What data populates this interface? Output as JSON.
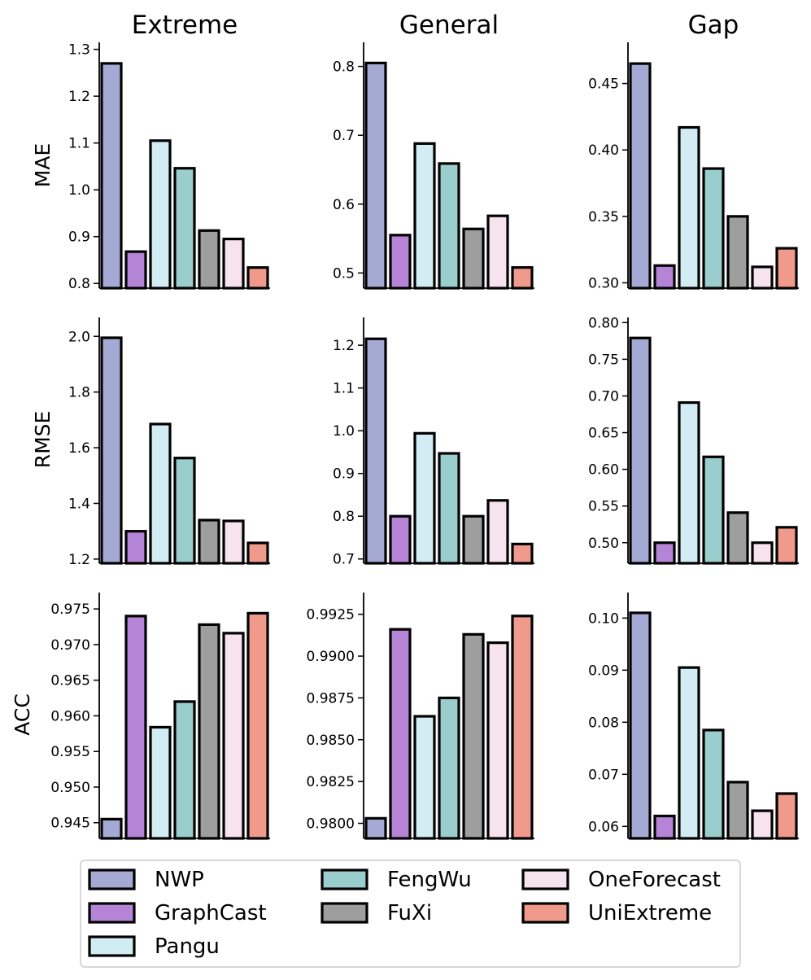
{
  "models": [
    "NWP",
    "GraphCast",
    "Pangu",
    "FengWu",
    "FuXi",
    "OneForecast",
    "UniExtreme"
  ],
  "colors": {
    "NWP": "#a4aad3",
    "GraphCast": "#b584d7",
    "Pangu": "#d1ecf2",
    "FengWu": "#9acecc",
    "FuXi": "#9e9e9e",
    "OneForecast": "#f7e3ed",
    "UniExtreme": "#ef9a8a"
  },
  "column_titles": [
    "Extreme",
    "General",
    "Gap"
  ],
  "row_labels": [
    "MAE",
    "RMSE",
    "ACC"
  ],
  "chart_data": [
    {
      "type": "bar",
      "metric": "MAE",
      "panel": "Extreme",
      "categories": [
        "NWP",
        "GraphCast",
        "Pangu",
        "FengWu",
        "FuXi",
        "OneForecast",
        "UniExtreme"
      ],
      "values": [
        1.27,
        0.868,
        1.105,
        1.046,
        0.913,
        0.895,
        0.834
      ],
      "ylim": [
        0.79,
        1.315
      ],
      "yticks": [
        0.8,
        0.9,
        1.0,
        1.1,
        1.2,
        1.3
      ],
      "ytick_labels": [
        "0.8",
        "0.9",
        "1.0",
        "1.1",
        "1.2",
        "1.3"
      ]
    },
    {
      "type": "bar",
      "metric": "MAE",
      "panel": "General",
      "categories": [
        "NWP",
        "GraphCast",
        "Pangu",
        "FengWu",
        "FuXi",
        "OneForecast",
        "UniExtreme"
      ],
      "values": [
        0.805,
        0.555,
        0.688,
        0.659,
        0.564,
        0.583,
        0.508
      ],
      "ylim": [
        0.478,
        0.835
      ],
      "yticks": [
        0.5,
        0.6,
        0.7,
        0.8
      ],
      "ytick_labels": [
        "0.5",
        "0.6",
        "0.7",
        "0.8"
      ]
    },
    {
      "type": "bar",
      "metric": "MAE",
      "panel": "Gap",
      "categories": [
        "NWP",
        "GraphCast",
        "Pangu",
        "FengWu",
        "FuXi",
        "OneForecast",
        "UniExtreme"
      ],
      "values": [
        0.465,
        0.313,
        0.417,
        0.386,
        0.35,
        0.312,
        0.326
      ],
      "ylim": [
        0.296,
        0.481
      ],
      "yticks": [
        0.3,
        0.35,
        0.4,
        0.45
      ],
      "ytick_labels": [
        "0.30",
        "0.35",
        "0.40",
        "0.45"
      ]
    },
    {
      "type": "bar",
      "metric": "RMSE",
      "panel": "Extreme",
      "categories": [
        "NWP",
        "GraphCast",
        "Pangu",
        "FengWu",
        "FuXi",
        "OneForecast",
        "UniExtreme"
      ],
      "values": [
        1.995,
        1.3,
        1.685,
        1.563,
        1.34,
        1.337,
        1.258
      ],
      "ylim": [
        1.185,
        2.068
      ],
      "yticks": [
        1.2,
        1.4,
        1.6,
        1.8,
        2.0
      ],
      "ytick_labels": [
        "1.2",
        "1.4",
        "1.6",
        "1.8",
        "2.0"
      ]
    },
    {
      "type": "bar",
      "metric": "RMSE",
      "panel": "General",
      "categories": [
        "NWP",
        "GraphCast",
        "Pangu",
        "FengWu",
        "FuXi",
        "OneForecast",
        "UniExtreme"
      ],
      "values": [
        1.215,
        0.8,
        0.994,
        0.947,
        0.8,
        0.837,
        0.735
      ],
      "ylim": [
        0.69,
        1.265
      ],
      "yticks": [
        0.7,
        0.8,
        0.9,
        1.0,
        1.1,
        1.2
      ],
      "ytick_labels": [
        "0.7",
        "0.8",
        "0.9",
        "1.0",
        "1.1",
        "1.2"
      ]
    },
    {
      "type": "bar",
      "metric": "RMSE",
      "panel": "Gap",
      "categories": [
        "NWP",
        "GraphCast",
        "Pangu",
        "FengWu",
        "FuXi",
        "OneForecast",
        "UniExtreme"
      ],
      "values": [
        0.779,
        0.5,
        0.691,
        0.617,
        0.541,
        0.5,
        0.521
      ],
      "ylim": [
        0.472,
        0.807
      ],
      "yticks": [
        0.5,
        0.55,
        0.6,
        0.65,
        0.7,
        0.75,
        0.8
      ],
      "ytick_labels": [
        "0.50",
        "0.55",
        "0.60",
        "0.65",
        "0.70",
        "0.75",
        "0.80"
      ]
    },
    {
      "type": "bar",
      "metric": "ACC",
      "panel": "Extreme",
      "categories": [
        "NWP",
        "GraphCast",
        "Pangu",
        "FengWu",
        "FuXi",
        "OneForecast",
        "UniExtreme"
      ],
      "values": [
        0.9455,
        0.974,
        0.9584,
        0.962,
        0.9728,
        0.9716,
        0.9744
      ],
      "ylim": [
        0.9428,
        0.9773
      ],
      "yticks": [
        0.945,
        0.95,
        0.955,
        0.96,
        0.965,
        0.97,
        0.975
      ],
      "ytick_labels": [
        "0.945",
        "0.950",
        "0.955",
        "0.960",
        "0.965",
        "0.970",
        "0.975"
      ]
    },
    {
      "type": "bar",
      "metric": "ACC",
      "panel": "General",
      "categories": [
        "NWP",
        "GraphCast",
        "Pangu",
        "FengWu",
        "FuXi",
        "OneForecast",
        "UniExtreme"
      ],
      "values": [
        0.9803,
        0.9916,
        0.9864,
        0.9875,
        0.9913,
        0.9908,
        0.9924
      ],
      "ylim": [
        0.9791,
        0.9938
      ],
      "yticks": [
        0.98,
        0.9825,
        0.985,
        0.9875,
        0.99,
        0.9925
      ],
      "ytick_labels": [
        "0.9800",
        "0.9825",
        "0.9850",
        "0.9875",
        "0.9900",
        "0.9925"
      ]
    },
    {
      "type": "bar",
      "metric": "ACC",
      "panel": "Gap",
      "categories": [
        "NWP",
        "GraphCast",
        "Pangu",
        "FengWu",
        "FuXi",
        "OneForecast",
        "UniExtreme"
      ],
      "values": [
        0.101,
        0.062,
        0.0905,
        0.0785,
        0.0685,
        0.063,
        0.0663
      ],
      "ylim": [
        0.0577,
        0.1049
      ],
      "yticks": [
        0.06,
        0.07,
        0.08,
        0.09,
        0.1
      ],
      "ytick_labels": [
        "0.06",
        "0.07",
        "0.08",
        "0.09",
        "0.10"
      ]
    }
  ]
}
